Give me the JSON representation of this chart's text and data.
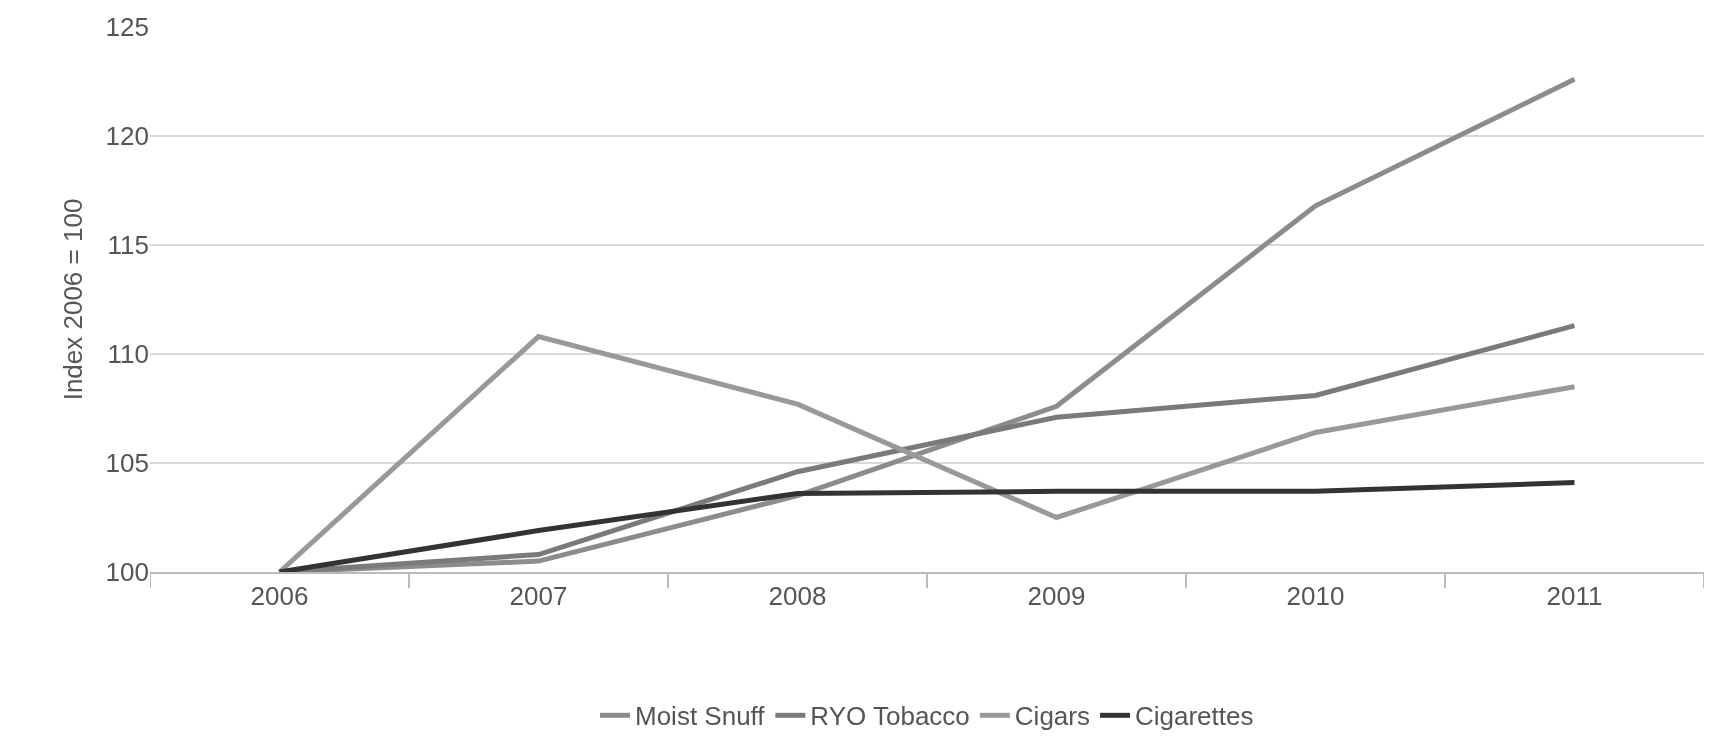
{
  "chart_data": {
    "type": "line",
    "ylabel": "Index 2006 = 100",
    "categories": [
      "2006",
      "2007",
      "2008",
      "2009",
      "2010",
      "2011"
    ],
    "ylim": [
      100,
      125
    ],
    "yticks": [
      100,
      105,
      110,
      115,
      120,
      125
    ],
    "grid": "y",
    "legend": "bottom",
    "series": [
      {
        "name": "Moist Snuff",
        "color": "#8c8c8c",
        "values": [
          100,
          100.5,
          103.5,
          107.6,
          116.8,
          122.6
        ]
      },
      {
        "name": "RYO Tobacco",
        "color": "#7a7a7a",
        "values": [
          100,
          100.8,
          104.6,
          107.1,
          108.1,
          111.3
        ]
      },
      {
        "name": "Cigars",
        "color": "#999999",
        "values": [
          100,
          110.8,
          107.7,
          102.5,
          106.4,
          108.5
        ]
      },
      {
        "name": "Cigarettes",
        "color": "#333333",
        "values": [
          100,
          101.9,
          103.6,
          103.7,
          103.7,
          104.1
        ]
      }
    ]
  }
}
